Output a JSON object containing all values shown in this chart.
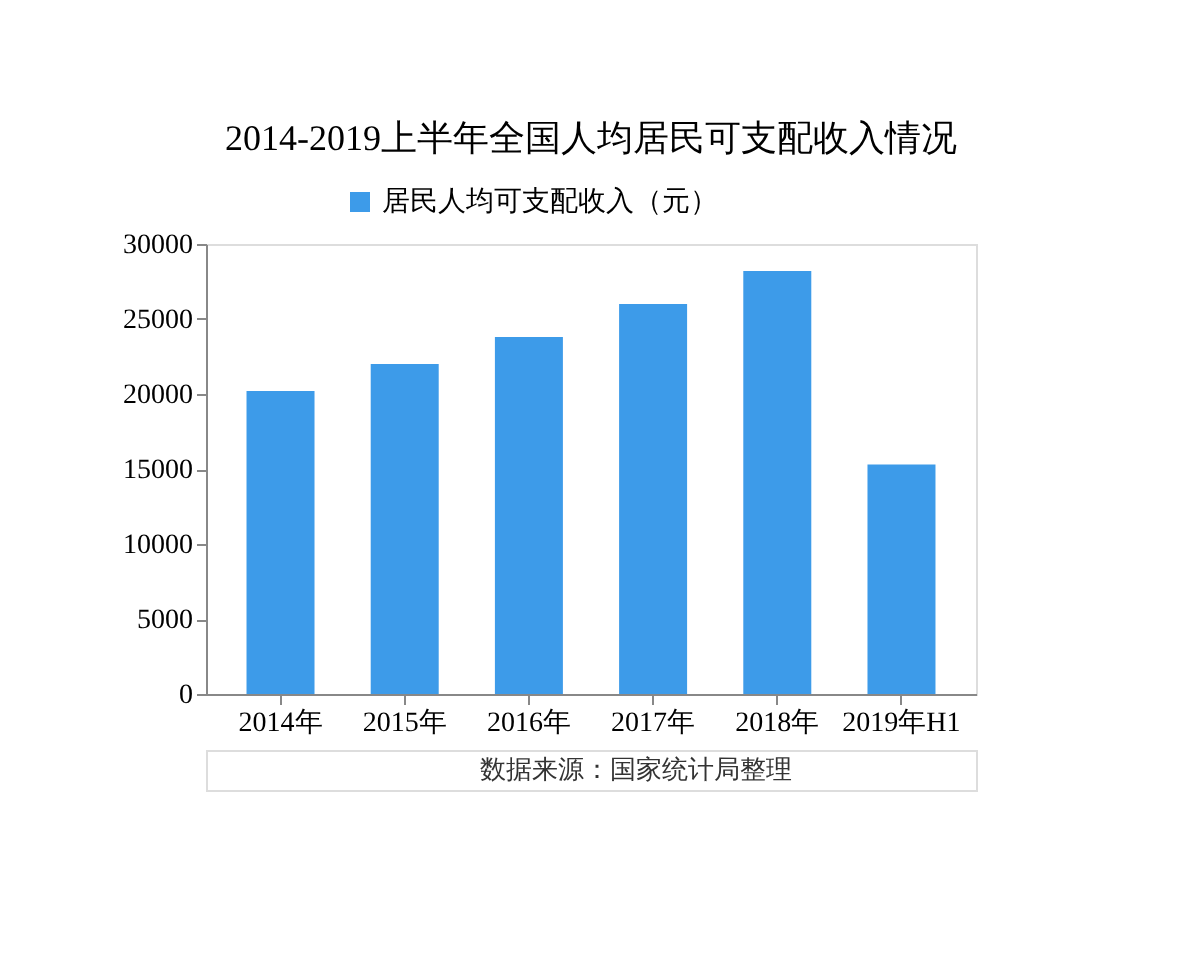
{
  "chart_data": {
    "type": "bar",
    "title": "2014-2019上半年全国人均居民可支配收入情况",
    "categories": [
      "2014年",
      "2015年",
      "2016年",
      "2017年",
      "2018年",
      "2019年H1"
    ],
    "series": [
      {
        "name": "居民人均可支配收入（元）",
        "color": "#3d9be9",
        "values": [
          20200,
          22000,
          23800,
          26000,
          28200,
          15300
        ]
      }
    ],
    "ylim": [
      0,
      30000
    ],
    "yticks": [
      0,
      5000,
      10000,
      15000,
      20000,
      25000,
      30000
    ],
    "grid": false,
    "legend": "top",
    "annotations": [
      "数据来源：国家统计局整理"
    ]
  }
}
